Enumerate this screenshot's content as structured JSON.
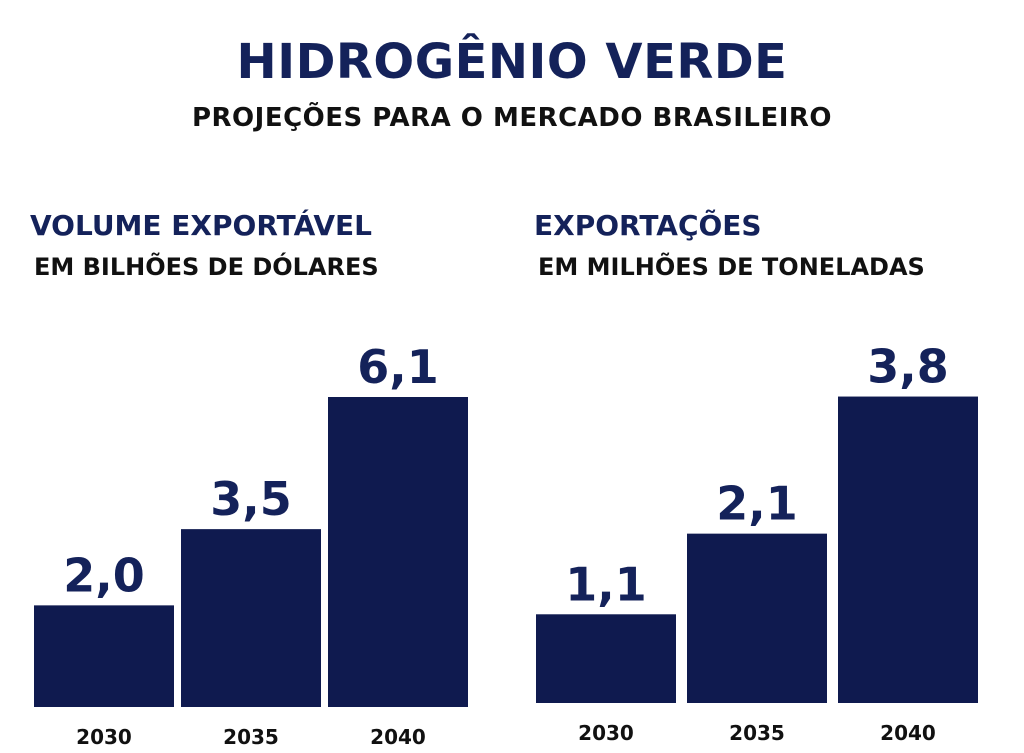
{
  "header": {
    "title": "HIDROGÊNIO VERDE",
    "subtitle": "PROJEÇÕES PARA O MERCADO BRASILEIRO"
  },
  "colors": {
    "bar": "#0f1a4f",
    "title": "#14225a",
    "text": "#111111",
    "background": "#ffffff"
  },
  "chart_data": [
    {
      "type": "bar",
      "title": "VOLUME EXPORTÁVEL",
      "subtitle": "EM BILHÕES DE DÓLARES",
      "categories": [
        "2030",
        "2035",
        "2040"
      ],
      "values": [
        2.0,
        3.5,
        6.1
      ],
      "value_labels": [
        "2,0",
        "3,5",
        "6,1"
      ],
      "ylim": [
        0,
        6.1
      ],
      "grid": false,
      "legend": "none"
    },
    {
      "type": "bar",
      "title": "EXPORTAÇÕES",
      "subtitle": "EM MILHÕES DE TONELADAS",
      "categories": [
        "2030",
        "2035",
        "2040"
      ],
      "values": [
        1.1,
        2.1,
        3.8
      ],
      "value_labels": [
        "1,1",
        "2,1",
        "3,8"
      ],
      "ylim": [
        0,
        4.65
      ],
      "grid": false,
      "legend": "none"
    }
  ]
}
